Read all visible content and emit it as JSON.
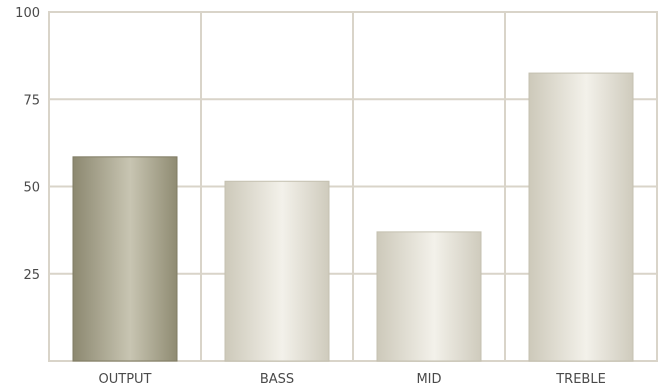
{
  "chart_data": {
    "type": "bar",
    "title": "",
    "xlabel": "",
    "ylabel": "",
    "categories": [
      "OUTPUT",
      "BASS",
      "MID",
      "TREBLE"
    ],
    "values": [
      58.5,
      51.5,
      37,
      82.5
    ],
    "ylim": [
      0,
      100
    ],
    "yticks": [
      25,
      50,
      75,
      100
    ],
    "grid": true,
    "legend": "none",
    "colors": {
      "grid": "#d9d4c9",
      "highlight_bar_dark": "#8f8b72",
      "highlight_bar_light": "#c9c6b3",
      "bar_dark": "#cfcbbd",
      "bar_light": "#f4f2ec",
      "text": "#4a4a4a"
    },
    "highlight_index": 0
  }
}
